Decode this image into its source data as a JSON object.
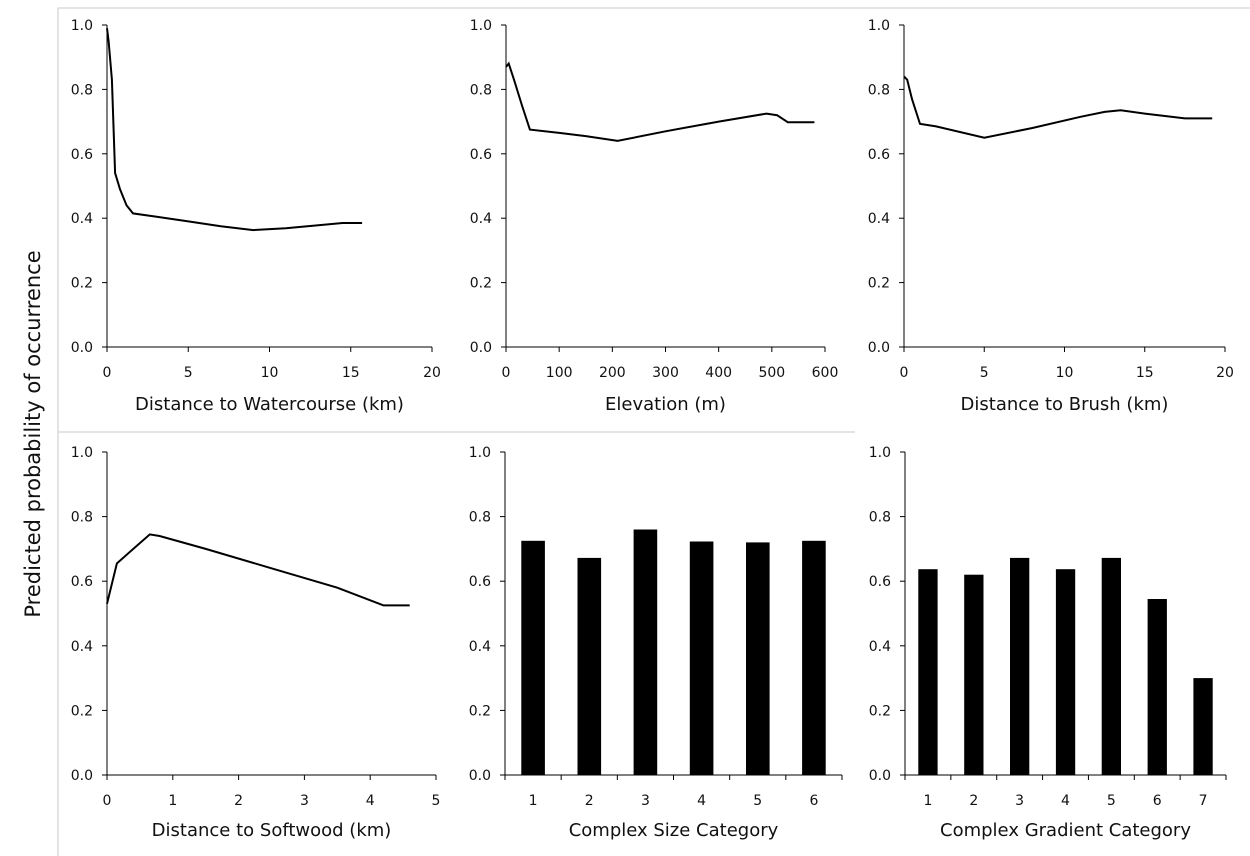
{
  "figure": {
    "ylabel": "Predicted probability of occurrence"
  },
  "chart_data": [
    {
      "type": "line",
      "xlabel": "Distance to Watercourse (km)",
      "xlim": [
        0,
        20
      ],
      "xticks": [
        0,
        5,
        10,
        15,
        20
      ],
      "ylim": [
        0,
        1
      ],
      "yticks": [
        "0.0",
        "0.2",
        "0.4",
        "0.6",
        "0.8",
        "1.0"
      ],
      "x": [
        0,
        0.1,
        0.3,
        0.5,
        0.8,
        1.2,
        1.6,
        3,
        5,
        7,
        9,
        11,
        13,
        14.5,
        15.7
      ],
      "y": [
        0.99,
        0.95,
        0.83,
        0.54,
        0.49,
        0.44,
        0.415,
        0.405,
        0.39,
        0.375,
        0.363,
        0.369,
        0.378,
        0.385,
        0.385
      ]
    },
    {
      "type": "line",
      "xlabel": "Elevation (m)",
      "xlim": [
        0,
        600
      ],
      "xticks": [
        0,
        100,
        200,
        300,
        400,
        500,
        600
      ],
      "ylim": [
        0,
        1
      ],
      "yticks": [
        "0.0",
        "0.2",
        "0.4",
        "0.6",
        "0.8",
        "1.0"
      ],
      "x": [
        0,
        5,
        15,
        30,
        45,
        100,
        150,
        210,
        300,
        400,
        490,
        510,
        530,
        580
      ],
      "y": [
        0.87,
        0.88,
        0.83,
        0.75,
        0.675,
        0.665,
        0.655,
        0.64,
        0.67,
        0.7,
        0.725,
        0.72,
        0.698,
        0.698
      ]
    },
    {
      "type": "line",
      "xlabel": "Distance to Brush (km)",
      "xlim": [
        0,
        20
      ],
      "xticks": [
        0,
        5,
        10,
        15,
        20
      ],
      "ylim": [
        0,
        1
      ],
      "yticks": [
        "0.0",
        "0.2",
        "0.4",
        "0.6",
        "0.8",
        "1.0"
      ],
      "x": [
        0,
        0.2,
        0.5,
        1,
        2,
        5,
        8,
        11,
        12.5,
        13.5,
        15,
        17.5,
        19.2
      ],
      "y": [
        0.84,
        0.83,
        0.77,
        0.693,
        0.685,
        0.65,
        0.68,
        0.715,
        0.73,
        0.735,
        0.725,
        0.71,
        0.71
      ],
      "note_marker": ""
    },
    {
      "type": "line",
      "xlabel": "Distance to Softwood (km)",
      "xlim": [
        0,
        5
      ],
      "xticks": [
        0,
        1,
        2,
        3,
        4,
        5
      ],
      "ylim": [
        0,
        1
      ],
      "yticks": [
        "0.0",
        "0.2",
        "0.4",
        "0.6",
        "0.8",
        "1.0"
      ],
      "x": [
        0,
        0.15,
        0.4,
        0.65,
        0.8,
        1.5,
        2.5,
        3.5,
        4.2,
        4.6
      ],
      "y": [
        0.53,
        0.655,
        0.7,
        0.745,
        0.74,
        0.7,
        0.64,
        0.58,
        0.525,
        0.525
      ]
    },
    {
      "type": "bar",
      "xlabel": "Complex Size Category",
      "categories": [
        "1",
        "2",
        "3",
        "4",
        "5",
        "6"
      ],
      "values": [
        0.725,
        0.672,
        0.76,
        0.723,
        0.72,
        0.725
      ],
      "ylim": [
        0,
        1
      ],
      "yticks": [
        "0.0",
        "0.2",
        "0.4",
        "0.6",
        "0.8",
        "1.0"
      ]
    },
    {
      "type": "bar",
      "xlabel": "Complex Gradient Category",
      "categories": [
        "1",
        "2",
        "3",
        "4",
        "5",
        "6",
        "7"
      ],
      "values": [
        0.637,
        0.62,
        0.672,
        0.637,
        0.672,
        0.545,
        0.3
      ],
      "ylim": [
        0,
        1
      ],
      "yticks": [
        "0.0",
        "0.2",
        "0.4",
        "0.6",
        "0.8",
        "1.0"
      ]
    }
  ]
}
